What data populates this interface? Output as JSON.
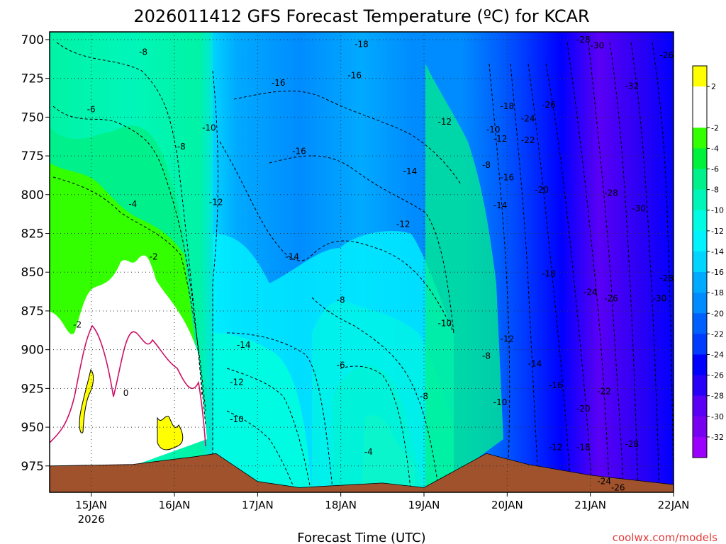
{
  "chart_data": {
    "type": "heatmap",
    "title": "2026011412 GFS Forecast Temperature (ºC) for KCAR",
    "xlabel": "Forecast Time (UTC)",
    "ylabel": "",
    "credit": "coolwx.com/models",
    "x_ticks": [
      "15JAN",
      "16JAN",
      "17JAN",
      "18JAN",
      "19JAN",
      "20JAN",
      "21JAN",
      "22JAN"
    ],
    "x_tick_year": "2026",
    "xlim": [
      "2026-01-14T12:00Z",
      "2026-01-22T00:00Z"
    ],
    "y_ticks": [
      700,
      725,
      750,
      775,
      800,
      825,
      850,
      875,
      900,
      925,
      950,
      975
    ],
    "ylim": [
      695,
      992
    ],
    "y_reversed": true,
    "grid": true,
    "colorbar": {
      "ticks": [
        "2",
        "-2",
        "-4",
        "-6",
        "-8",
        "-10",
        "-12",
        "-14",
        "-16",
        "-18",
        "-20",
        "-22",
        "-24",
        "-26",
        "-28",
        "-30",
        "-32"
      ],
      "bins": [
        {
          "min": 2,
          "max": 4,
          "color": "#ffff00"
        },
        {
          "min": 0,
          "max": 2,
          "color": "#ffffff"
        },
        {
          "min": -2,
          "max": 0,
          "color": "#ffffff"
        },
        {
          "min": -4,
          "max": -2,
          "color": "#33ff00"
        },
        {
          "min": -6,
          "max": -4,
          "color": "#00f13c"
        },
        {
          "min": -8,
          "max": -6,
          "color": "#00f08c"
        },
        {
          "min": -10,
          "max": -8,
          "color": "#00f6b9"
        },
        {
          "min": -12,
          "max": -10,
          "color": "#00fbe3"
        },
        {
          "min": -14,
          "max": -12,
          "color": "#00f2ff"
        },
        {
          "min": -16,
          "max": -14,
          "color": "#00d4ff"
        },
        {
          "min": -18,
          "max": -16,
          "color": "#00aaff"
        },
        {
          "min": -20,
          "max": -18,
          "color": "#008cff"
        },
        {
          "min": -22,
          "max": -20,
          "color": "#0060ff"
        },
        {
          "min": -24,
          "max": -22,
          "color": "#003cff"
        },
        {
          "min": -26,
          "max": -24,
          "color": "#0000ff"
        },
        {
          "min": -28,
          "max": -26,
          "color": "#2800f5"
        },
        {
          "min": -30,
          "max": -28,
          "color": "#5a00f5"
        },
        {
          "min": -32,
          "max": -30,
          "color": "#7800f0"
        },
        {
          "min": -34,
          "max": -32,
          "color": "#9b00ff"
        }
      ]
    },
    "terrain_color": "#a0522d",
    "freezing_line_color": "#cc1166",
    "contour_interval": 2,
    "surface_pressure": [
      {
        "t": "2026-01-14T12:00Z",
        "p": 975
      },
      {
        "t": "2026-01-15T12:00Z",
        "p": 974
      },
      {
        "t": "2026-01-16T06:00Z",
        "p": 969
      },
      {
        "t": "2026-01-16T12:00Z",
        "p": 967
      },
      {
        "t": "2026-01-17T00:00Z",
        "p": 985
      },
      {
        "t": "2026-01-17T12:00Z",
        "p": 989
      },
      {
        "t": "2026-01-18T12:00Z",
        "p": 986
      },
      {
        "t": "2026-01-19T00:00Z",
        "p": 989
      },
      {
        "t": "2026-01-19T18:00Z",
        "p": 967
      },
      {
        "t": "2026-01-20T06:00Z",
        "p": 974
      },
      {
        "t": "2026-01-21T00:00Z",
        "p": 981
      },
      {
        "t": "2026-01-22T00:00Z",
        "p": 987
      }
    ],
    "contour_labels": [
      {
        "t": "2026-01-15T15:00Z",
        "p": 708,
        "v": -8
      },
      {
        "t": "2026-01-15T00:00Z",
        "p": 745,
        "v": -6
      },
      {
        "t": "2026-01-15T12:00Z",
        "p": 806,
        "v": -4
      },
      {
        "t": "2026-01-15T18:00Z",
        "p": 840,
        "v": -2
      },
      {
        "t": "2026-01-14T20:00Z",
        "p": 884,
        "v": -2
      },
      {
        "t": "2026-01-15T10:00Z",
        "p": 928,
        "v": 0
      },
      {
        "t": "2026-01-16T02:00Z",
        "p": 769,
        "v": -8
      },
      {
        "t": "2026-01-16T10:00Z",
        "p": 757,
        "v": -10
      },
      {
        "t": "2026-01-16T12:00Z",
        "p": 805,
        "v": -12
      },
      {
        "t": "2026-01-17T06:00Z",
        "p": 728,
        "v": -16
      },
      {
        "t": "2026-01-18T04:00Z",
        "p": 723,
        "v": -16
      },
      {
        "t": "2026-01-18T06:00Z",
        "p": 703,
        "v": -18
      },
      {
        "t": "2026-01-17T12:00Z",
        "p": 772,
        "v": -16
      },
      {
        "t": "2026-01-17T10:00Z",
        "p": 840,
        "v": -14
      },
      {
        "t": "2026-01-16T20:00Z",
        "p": 897,
        "v": -14
      },
      {
        "t": "2026-01-16T18:00Z",
        "p": 921,
        "v": -12
      },
      {
        "t": "2026-01-16T18:00Z",
        "p": 945,
        "v": -10
      },
      {
        "t": "2026-01-18T00:00Z",
        "p": 868,
        "v": -8
      },
      {
        "t": "2026-01-18T00:00Z",
        "p": 910,
        "v": -6
      },
      {
        "t": "2026-01-18T08:00Z",
        "p": 966,
        "v": -4
      },
      {
        "t": "2026-01-18T20:00Z",
        "p": 785,
        "v": -14
      },
      {
        "t": "2026-01-18T18:00Z",
        "p": 819,
        "v": -12
      },
      {
        "t": "2026-01-19T06:00Z",
        "p": 753,
        "v": -12
      },
      {
        "t": "2026-01-19T06:00Z",
        "p": 883,
        "v": -10
      },
      {
        "t": "2026-01-19T00:00Z",
        "p": 930,
        "v": -8
      },
      {
        "t": "2026-01-19T18:00Z",
        "p": 781,
        "v": -8
      },
      {
        "t": "2026-01-19T20:00Z",
        "p": 758,
        "v": -10
      },
      {
        "t": "2026-01-19T22:00Z",
        "p": 764,
        "v": -12
      },
      {
        "t": "2026-01-20T00:00Z",
        "p": 789,
        "v": -16
      },
      {
        "t": "2026-01-19T22:00Z",
        "p": 807,
        "v": -14
      },
      {
        "t": "2026-01-20T00:00Z",
        "p": 743,
        "v": -18
      },
      {
        "t": "2026-01-20T06:00Z",
        "p": 751,
        "v": -24
      },
      {
        "t": "2026-01-20T06:00Z",
        "p": 765,
        "v": -22
      },
      {
        "t": "2026-01-20T12:00Z",
        "p": 742,
        "v": -26
      },
      {
        "t": "2026-01-20T10:00Z",
        "p": 797,
        "v": -20
      },
      {
        "t": "2026-01-20T22:00Z",
        "p": 700,
        "v": -28
      },
      {
        "t": "2026-01-21T02:00Z",
        "p": 704,
        "v": -30
      },
      {
        "t": "2026-01-21T12:00Z",
        "p": 730,
        "v": -32
      },
      {
        "t": "2026-01-21T06:00Z",
        "p": 799,
        "v": -28
      },
      {
        "t": "2026-01-21T14:00Z",
        "p": 809,
        "v": -30
      },
      {
        "t": "2026-01-20T12:00Z",
        "p": 851,
        "v": -18
      },
      {
        "t": "2026-01-20T00:00Z",
        "p": 893,
        "v": -12
      },
      {
        "t": "2026-01-19T18:00Z",
        "p": 904,
        "v": -8
      },
      {
        "t": "2026-01-19T22:00Z",
        "p": 934,
        "v": -10
      },
      {
        "t": "2026-01-20T08:00Z",
        "p": 909,
        "v": -14
      },
      {
        "t": "2026-01-20T14:00Z",
        "p": 923,
        "v": -16
      },
      {
        "t": "2026-01-20T22:00Z",
        "p": 938,
        "v": -20
      },
      {
        "t": "2026-01-21T04:00Z",
        "p": 927,
        "v": -22
      },
      {
        "t": "2026-01-21T00:00Z",
        "p": 863,
        "v": -24
      },
      {
        "t": "2026-01-21T06:00Z",
        "p": 867,
        "v": -26
      },
      {
        "t": "2026-01-21T20:00Z",
        "p": 867,
        "v": -30
      },
      {
        "t": "2026-01-21T22:00Z",
        "p": 854,
        "v": -28
      },
      {
        "t": "2026-01-21T22:00Z",
        "p": 710,
        "v": -26
      },
      {
        "t": "2026-01-20T14:00Z",
        "p": 963,
        "v": -12
      },
      {
        "t": "2026-01-20T22:00Z",
        "p": 963,
        "v": -18
      },
      {
        "t": "2026-01-21T12:00Z",
        "p": 961,
        "v": -28
      },
      {
        "t": "2026-01-21T04:00Z",
        "p": 985,
        "v": -24
      },
      {
        "t": "2026-01-21T08:00Z",
        "p": 989,
        "v": -26
      }
    ]
  }
}
